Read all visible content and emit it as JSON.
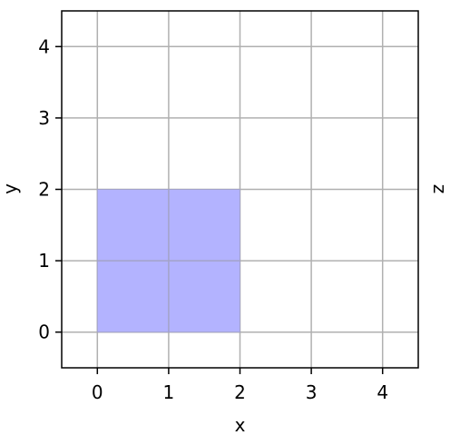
{
  "chart_data": {
    "type": "area",
    "title": "",
    "xlabel": "x",
    "ylabel": "y",
    "zlabel": "z",
    "xlim": [
      -0.5,
      4.5
    ],
    "ylim": [
      -0.5,
      4.5
    ],
    "xticks": [
      0,
      1,
      2,
      3,
      4
    ],
    "yticks": [
      0,
      1,
      2,
      3,
      4
    ],
    "xtick_labels": [
      "0",
      "1",
      "2",
      "3",
      "4"
    ],
    "ytick_labels": [
      "0",
      "1",
      "2",
      "3",
      "4"
    ],
    "grid": true,
    "regions": [
      {
        "x": [
          0,
          2
        ],
        "y": [
          0,
          2
        ],
        "color": "#b3b3ff",
        "alpha": 1
      }
    ],
    "colors": {
      "grid": "#b0b0b0",
      "axes": "#000000",
      "fill": "#b3b3ff",
      "fill_edge": "#a3a3c8"
    }
  }
}
